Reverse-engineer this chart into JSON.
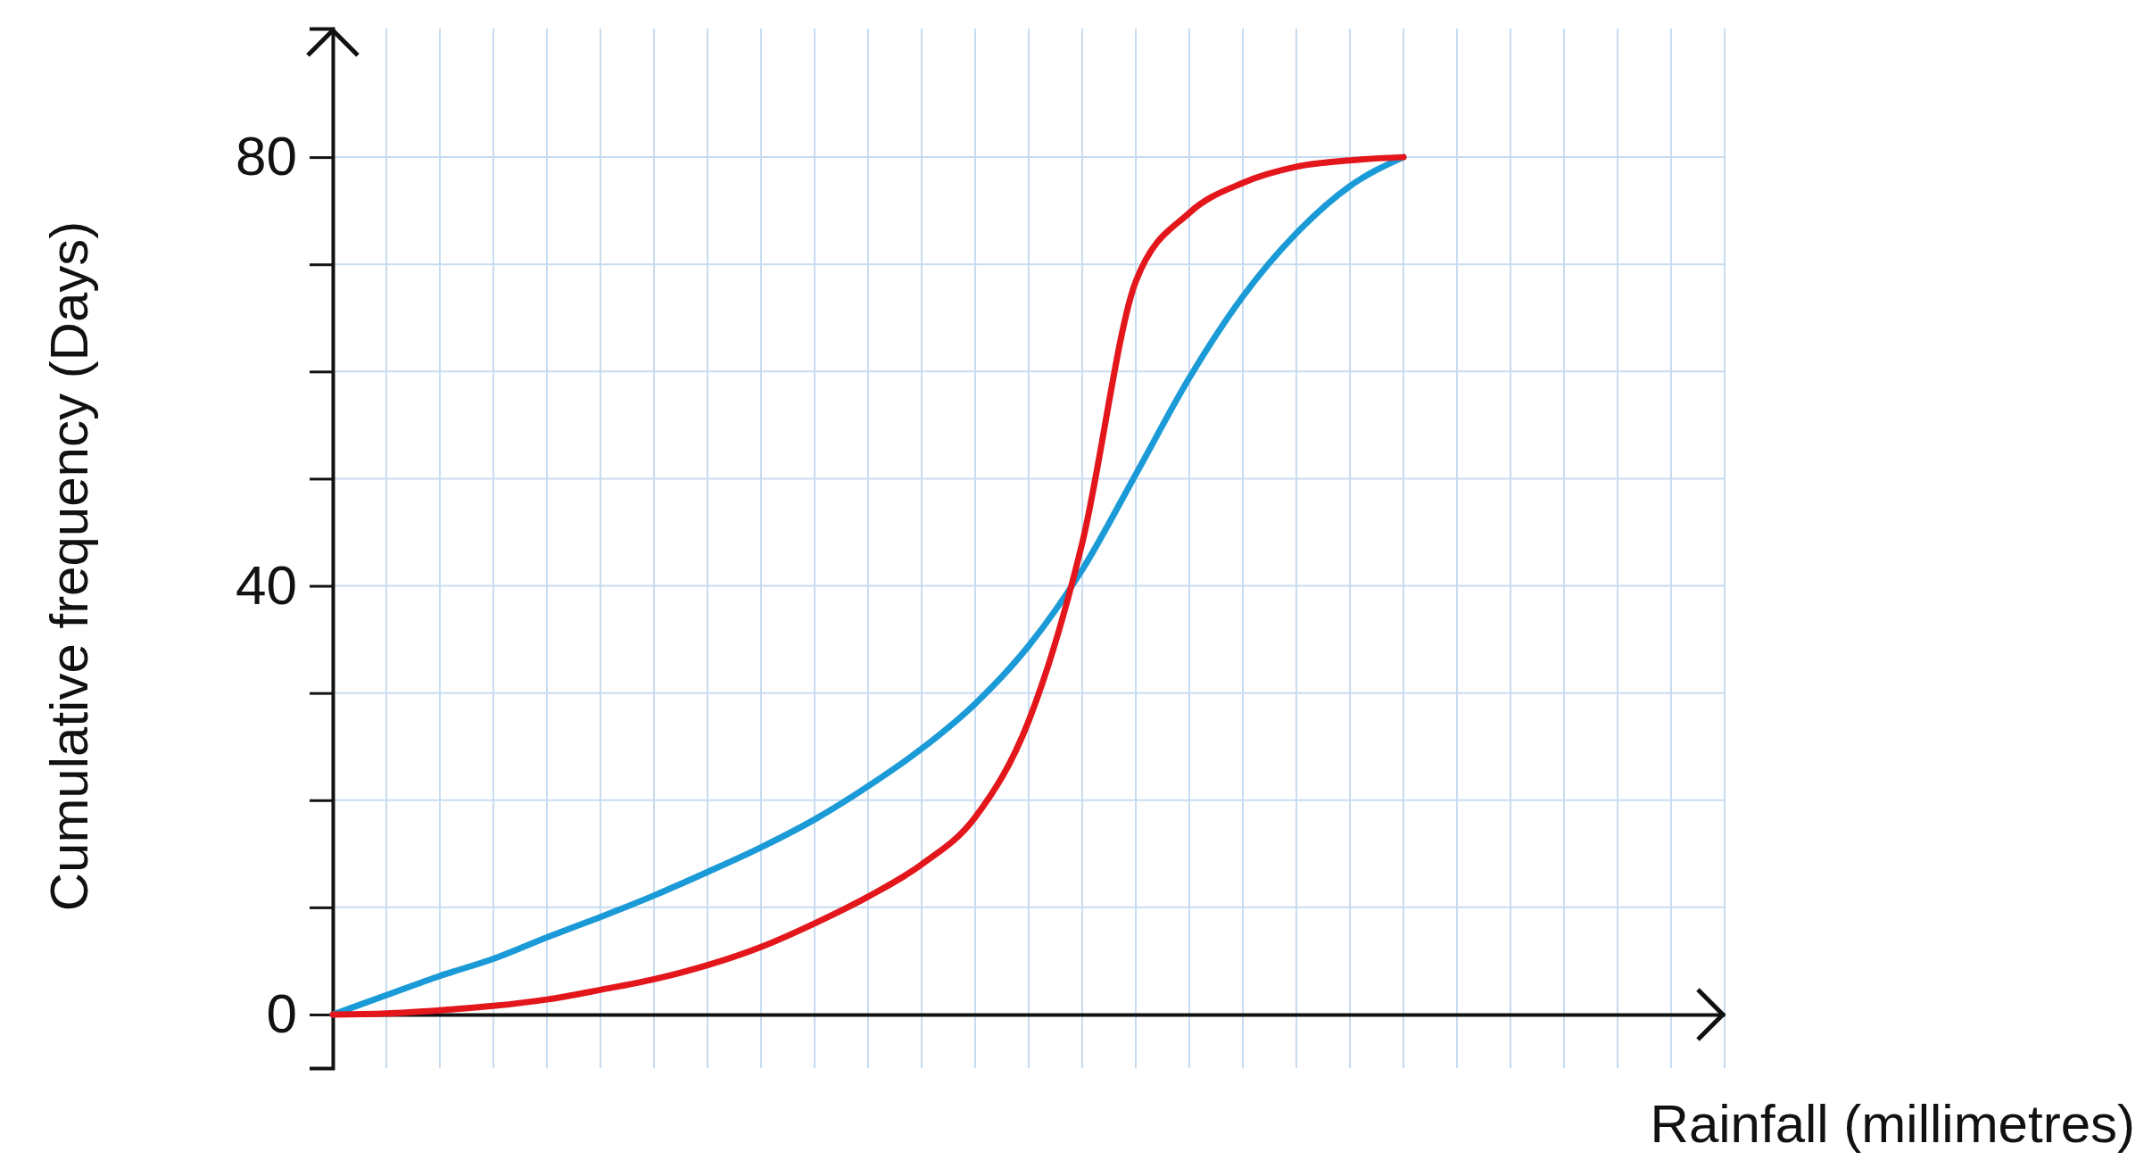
{
  "chart_data": {
    "type": "line",
    "xlabel": "Rainfall (millimetres)",
    "ylabel": "Cumulative frequency (Days)",
    "categories": [
      null,
      null,
      null,
      null,
      null,
      null,
      null,
      null,
      null,
      null,
      null,
      null,
      null,
      null,
      null,
      null,
      null,
      null,
      null,
      null,
      null,
      null,
      null,
      null,
      null,
      null,
      null
    ],
    "series": [
      {
        "color": "#1a9ad6",
        "values": [
          0,
          1.8,
          3.6,
          5.2,
          7.2,
          9.1,
          11.1,
          13.3,
          15.6,
          18.2,
          21.3,
          24.8,
          29,
          34.4,
          41.5,
          50.4,
          59.4,
          67,
          72.9,
          77.3,
          80,
          null,
          null,
          null,
          null,
          null,
          null
        ]
      },
      {
        "color": "#e3161b",
        "values": [
          0,
          0.1,
          0.4,
          0.8,
          1.4,
          2.3,
          3.3,
          4.6,
          6.3,
          8.5,
          11,
          14,
          18.4,
          27.4,
          44,
          68.4,
          74.8,
          77.6,
          79.1,
          79.7,
          80,
          null,
          null,
          null,
          null,
          null,
          null
        ]
      }
    ],
    "ylim": [
      -5,
      92
    ],
    "yticks": [
      0,
      {
        "value": 10,
        "label": null
      },
      {
        "value": 20,
        "label": null
      },
      {
        "value": 30,
        "label": null
      },
      40,
      {
        "value": 50,
        "label": null
      },
      {
        "value": 60,
        "label": null
      },
      {
        "value": 70,
        "label": null
      },
      80
    ],
    "grid": true,
    "marker": "none",
    "line_style": "solid"
  }
}
